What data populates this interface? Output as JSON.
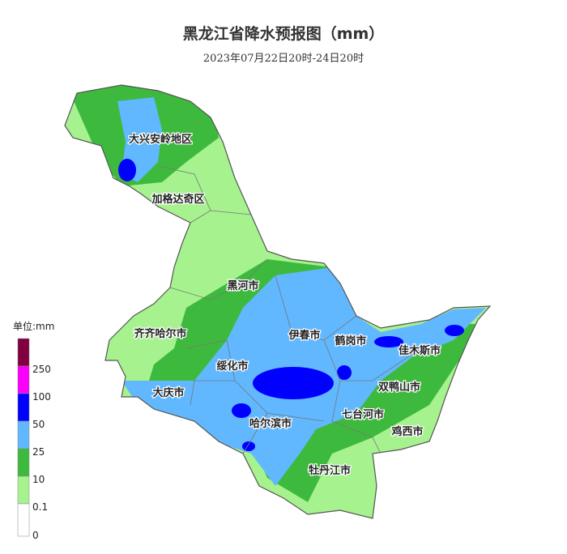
{
  "header": {
    "title": "黑龙江省降水预报图（mm）",
    "subtitle": "2023年07月22日20时-24日20时"
  },
  "legend": {
    "unit": "单位:mm",
    "ticks": [
      0,
      0.1,
      10,
      25,
      50,
      100,
      250
    ]
  },
  "regions": [
    "大兴安岭地区",
    "加格达奇区",
    "黑河市",
    "齐齐哈尔市",
    "伊春市",
    "鹤岗市",
    "佳木斯市",
    "绥化市",
    "双鸭山市",
    "大庆市",
    "七台河市",
    "哈尔滨市",
    "鸡西市",
    "牡丹江市"
  ]
}
